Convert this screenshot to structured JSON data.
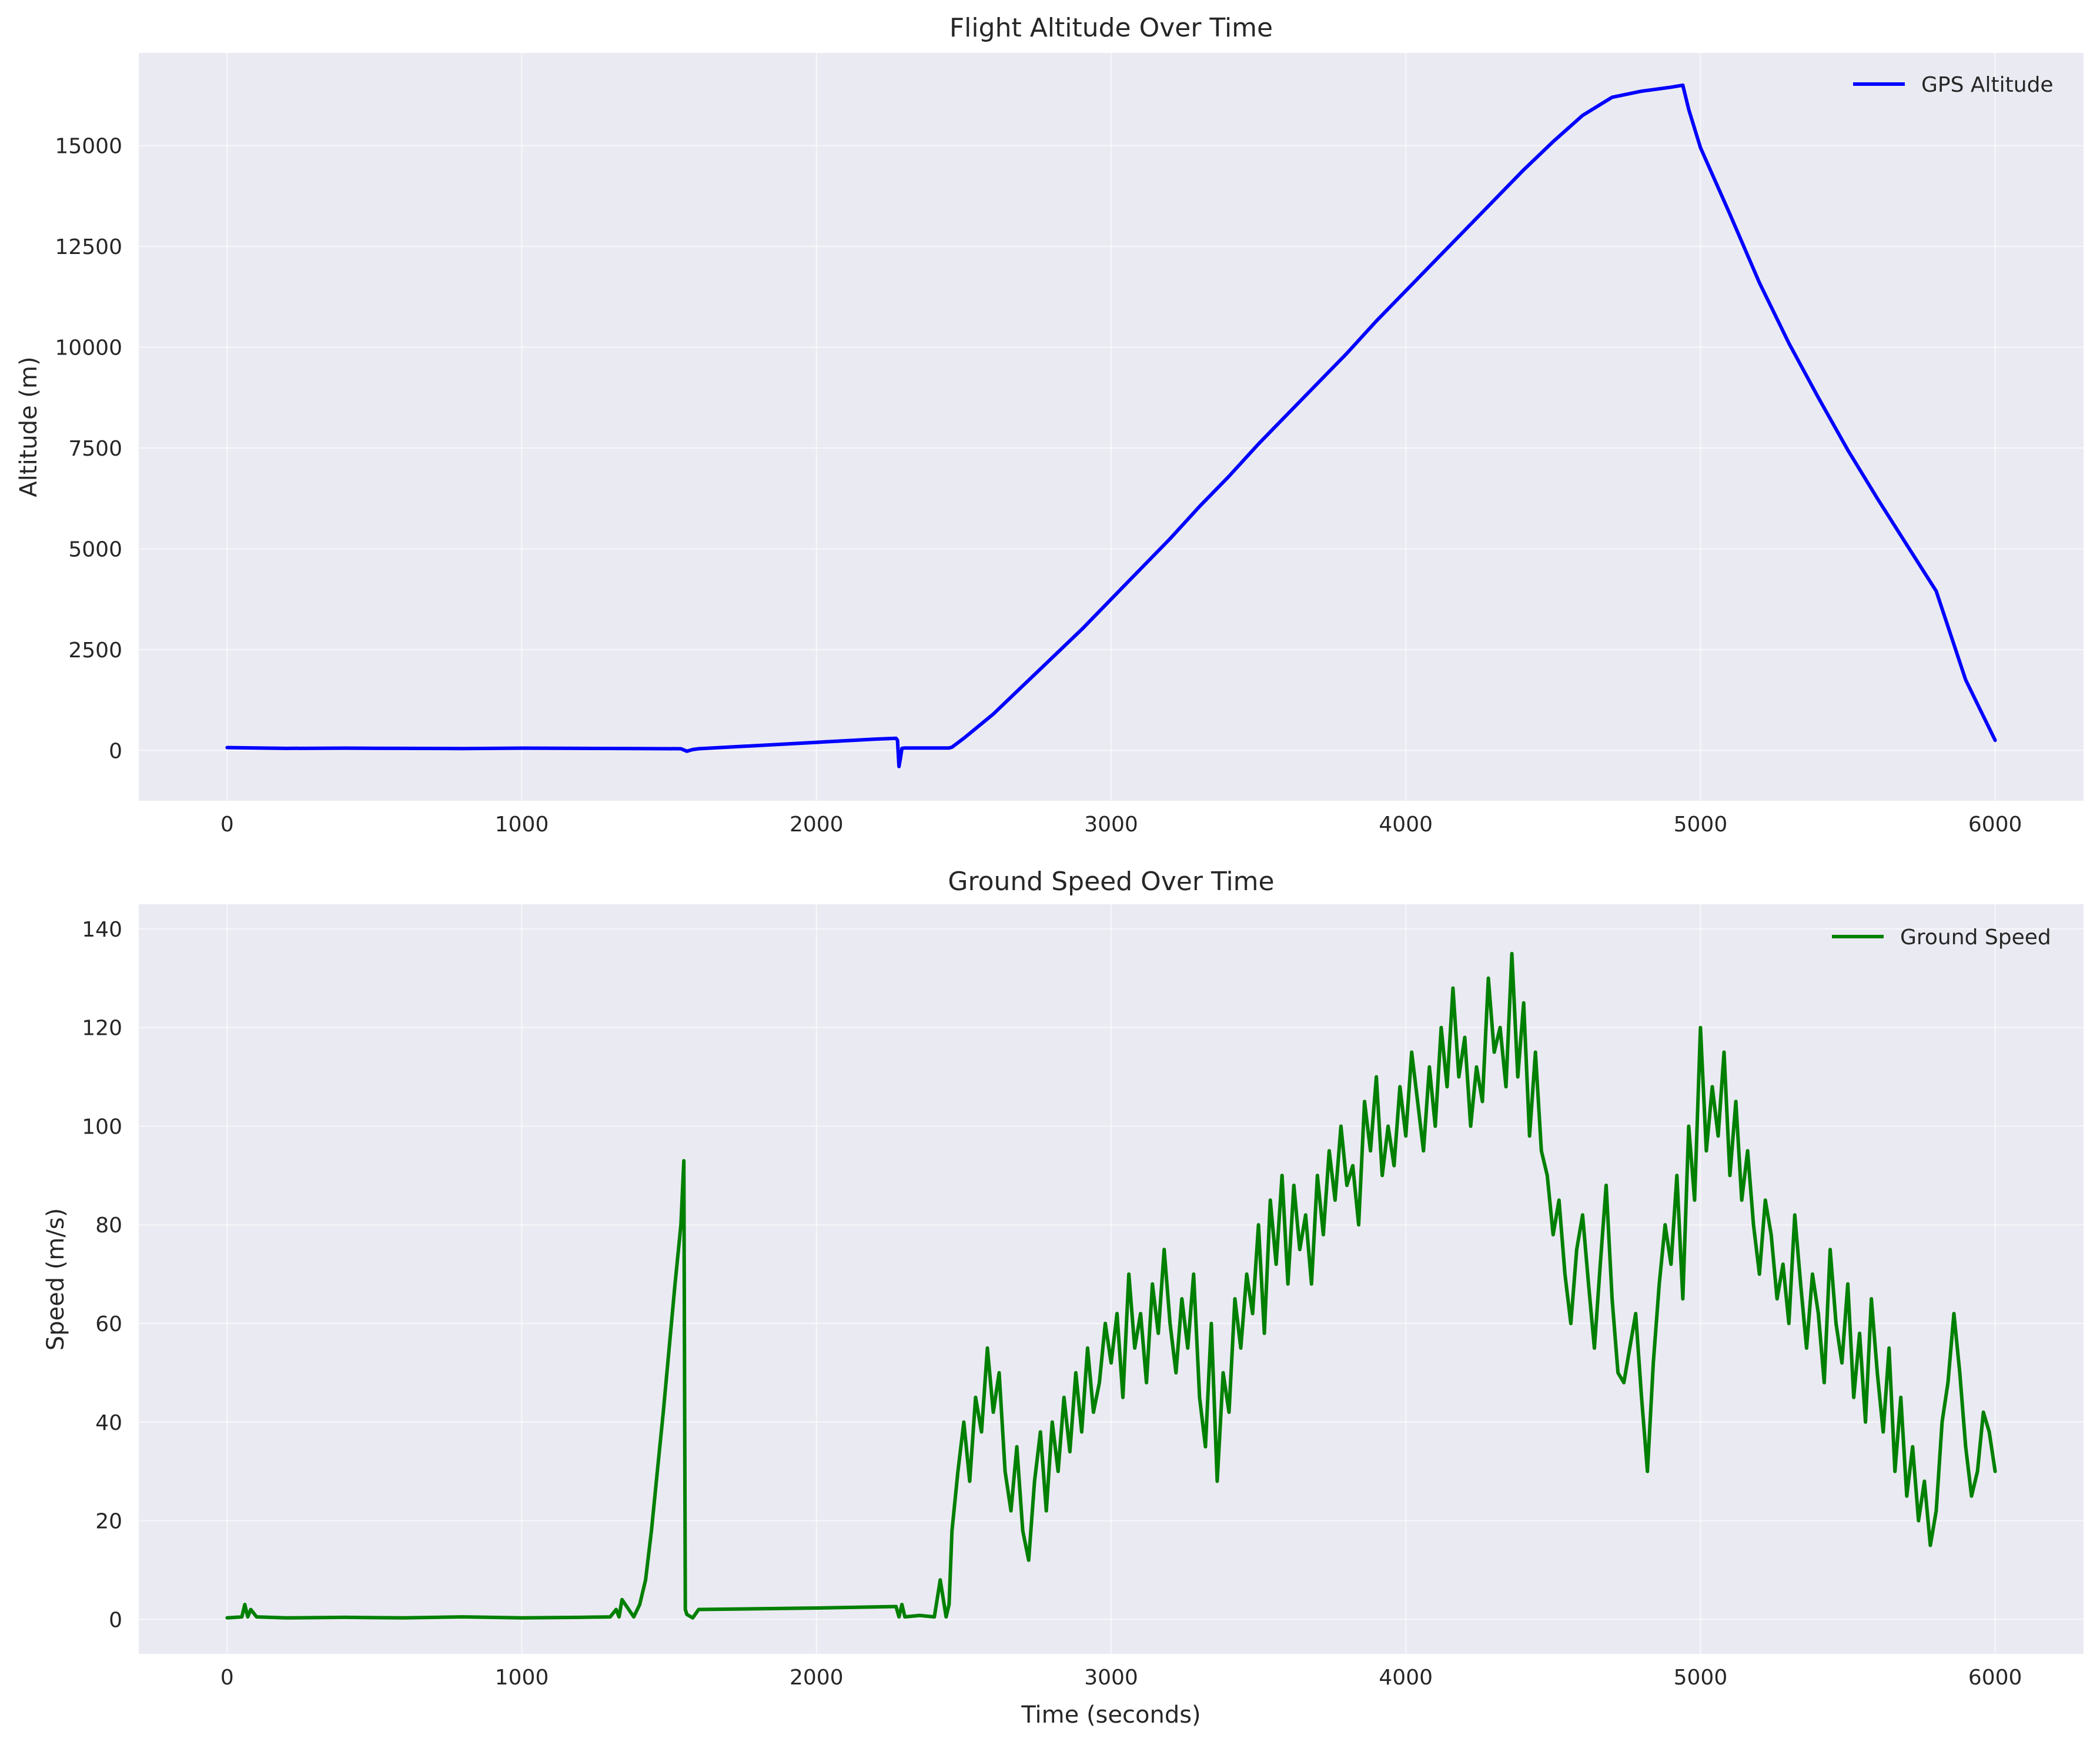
{
  "chart_data": [
    {
      "type": "line",
      "title": "Flight Altitude Over Time",
      "xlabel": "",
      "ylabel": "Altitude (m)",
      "xlim": [
        -300,
        6300
      ],
      "ylim": [
        -1250,
        17300
      ],
      "xticks": [
        0,
        1000,
        2000,
        3000,
        4000,
        5000,
        6000
      ],
      "xtick_labels": [
        "0",
        "1000",
        "2000",
        "3000",
        "4000",
        "5000",
        "6000"
      ],
      "yticks": [
        0,
        2500,
        5000,
        7500,
        10000,
        12500,
        15000
      ],
      "ytick_labels": [
        "0",
        "2500",
        "5000",
        "7500",
        "10000",
        "12500",
        "15000"
      ],
      "grid": true,
      "legend_position": "top-right",
      "series": [
        {
          "name": "GPS Altitude",
          "color": "#0000ff",
          "x": [
            0,
            100,
            200,
            400,
            600,
            800,
            1000,
            1200,
            1400,
            1540,
            1560,
            1580,
            1600,
            1800,
            2000,
            2200,
            2270,
            2275,
            2280,
            2285,
            2290,
            2300,
            2450,
            2460,
            2500,
            2600,
            2700,
            2800,
            2900,
            3000,
            3100,
            3200,
            3300,
            3400,
            3500,
            3600,
            3700,
            3800,
            3900,
            4000,
            4100,
            4200,
            4300,
            4400,
            4500,
            4600,
            4700,
            4800,
            4900,
            4940,
            4960,
            5000,
            5100,
            5200,
            5300,
            5400,
            5500,
            5600,
            5700,
            5800,
            5900,
            6000
          ],
          "y": [
            70,
            60,
            50,
            55,
            50,
            45,
            55,
            50,
            45,
            40,
            -20,
            20,
            40,
            120,
            200,
            280,
            300,
            250,
            -400,
            -200,
            50,
            60,
            60,
            80,
            300,
            900,
            1600,
            2300,
            3000,
            3750,
            4500,
            5250,
            6050,
            6800,
            7600,
            8350,
            9100,
            9850,
            10650,
            11400,
            12150,
            12900,
            13650,
            14400,
            15100,
            15750,
            16200,
            16350,
            16450,
            16500,
            15900,
            14950,
            13300,
            11600,
            10100,
            8750,
            7450,
            6250,
            5100,
            3950,
            1750,
            250
          ]
        }
      ]
    },
    {
      "type": "line",
      "title": "Ground Speed Over Time",
      "xlabel": "Time (seconds)",
      "ylabel": "Speed (m/s)",
      "xlim": [
        -300,
        6300
      ],
      "ylim": [
        -7,
        145
      ],
      "xticks": [
        0,
        1000,
        2000,
        3000,
        4000,
        5000,
        6000
      ],
      "xtick_labels": [
        "0",
        "1000",
        "2000",
        "3000",
        "4000",
        "5000",
        "6000"
      ],
      "yticks": [
        0,
        20,
        40,
        60,
        80,
        100,
        120,
        140
      ],
      "ytick_labels": [
        "0",
        "20",
        "40",
        "60",
        "80",
        "100",
        "120",
        "140"
      ],
      "grid": true,
      "legend_position": "top-right",
      "series": [
        {
          "name": "Ground Speed",
          "color": "#008000",
          "x": [
            0,
            50,
            60,
            70,
            80,
            100,
            200,
            400,
            600,
            800,
            1000,
            1200,
            1300,
            1320,
            1330,
            1340,
            1380,
            1400,
            1420,
            1440,
            1460,
            1480,
            1500,
            1520,
            1540,
            1550,
            1555,
            1560,
            1580,
            1600,
            2000,
            2270,
            2280,
            2290,
            2300,
            2350,
            2400,
            2420,
            2440,
            2450,
            2460,
            2480,
            2500,
            2520,
            2540,
            2560,
            2580,
            2600,
            2620,
            2640,
            2660,
            2680,
            2700,
            2720,
            2740,
            2760,
            2780,
            2800,
            2820,
            2840,
            2860,
            2880,
            2900,
            2920,
            2940,
            2960,
            2980,
            3000,
            3020,
            3040,
            3060,
            3080,
            3100,
            3120,
            3140,
            3160,
            3180,
            3200,
            3220,
            3240,
            3260,
            3280,
            3300,
            3320,
            3340,
            3360,
            3380,
            3400,
            3420,
            3440,
            3460,
            3480,
            3500,
            3520,
            3540,
            3560,
            3580,
            3600,
            3620,
            3640,
            3660,
            3680,
            3700,
            3720,
            3740,
            3760,
            3780,
            3800,
            3820,
            3840,
            3860,
            3880,
            3900,
            3920,
            3940,
            3960,
            3980,
            4000,
            4020,
            4040,
            4060,
            4080,
            4100,
            4120,
            4140,
            4160,
            4180,
            4200,
            4220,
            4240,
            4260,
            4280,
            4300,
            4320,
            4340,
            4360,
            4380,
            4400,
            4420,
            4440,
            4460,
            4480,
            4500,
            4520,
            4540,
            4560,
            4580,
            4600,
            4620,
            4640,
            4660,
            4680,
            4700,
            4720,
            4740,
            4760,
            4780,
            4800,
            4820,
            4840,
            4860,
            4880,
            4900,
            4920,
            4940,
            4960,
            4980,
            5000,
            5020,
            5040,
            5060,
            5080,
            5100,
            5120,
            5140,
            5160,
            5180,
            5200,
            5220,
            5240,
            5260,
            5280,
            5300,
            5320,
            5340,
            5360,
            5380,
            5400,
            5420,
            5440,
            5460,
            5480,
            5500,
            5520,
            5540,
            5560,
            5580,
            5600,
            5620,
            5640,
            5660,
            5680,
            5700,
            5720,
            5740,
            5760,
            5780,
            5800,
            5820,
            5840,
            5860,
            5880,
            5900,
            5920,
            5940,
            5960,
            5980,
            6000
          ],
          "y": [
            0.3,
            0.5,
            3,
            0.5,
            2,
            0.5,
            0.3,
            0.4,
            0.3,
            0.5,
            0.3,
            0.4,
            0.5,
            2,
            0.5,
            4,
            0.5,
            3,
            8,
            18,
            30,
            42,
            55,
            68,
            80,
            93,
            2,
            1,
            0.3,
            2,
            2.3,
            2.6,
            0.5,
            3,
            0.5,
            0.8,
            0.5,
            8,
            0.5,
            3,
            18,
            30,
            40,
            28,
            45,
            38,
            55,
            42,
            50,
            30,
            22,
            35,
            18,
            12,
            28,
            38,
            22,
            40,
            30,
            45,
            34,
            50,
            38,
            55,
            42,
            48,
            60,
            52,
            62,
            45,
            70,
            55,
            62,
            48,
            68,
            58,
            75,
            60,
            50,
            65,
            55,
            70,
            45,
            35,
            60,
            28,
            50,
            42,
            65,
            55,
            70,
            62,
            80,
            58,
            85,
            72,
            90,
            68,
            88,
            75,
            82,
            68,
            90,
            78,
            95,
            85,
            100,
            88,
            92,
            80,
            105,
            95,
            110,
            90,
            100,
            92,
            108,
            98,
            115,
            105,
            95,
            112,
            100,
            120,
            108,
            128,
            110,
            118,
            100,
            112,
            105,
            130,
            115,
            120,
            108,
            135,
            110,
            125,
            98,
            115,
            95,
            90,
            78,
            85,
            70,
            60,
            75,
            82,
            68,
            55,
            72,
            88,
            65,
            50,
            48,
            55,
            62,
            45,
            30,
            52,
            68,
            80,
            72,
            90,
            65,
            100,
            85,
            120,
            95,
            108,
            98,
            115,
            90,
            105,
            85,
            95,
            80,
            70,
            85,
            78,
            65,
            72,
            60,
            82,
            68,
            55,
            70,
            62,
            48,
            75,
            60,
            52,
            68,
            45,
            58,
            40,
            65,
            50,
            38,
            55,
            30,
            45,
            25,
            35,
            20,
            28,
            15,
            22,
            40,
            48,
            62,
            50,
            35,
            25,
            30,
            42,
            38,
            30
          ]
        }
      ]
    }
  ]
}
